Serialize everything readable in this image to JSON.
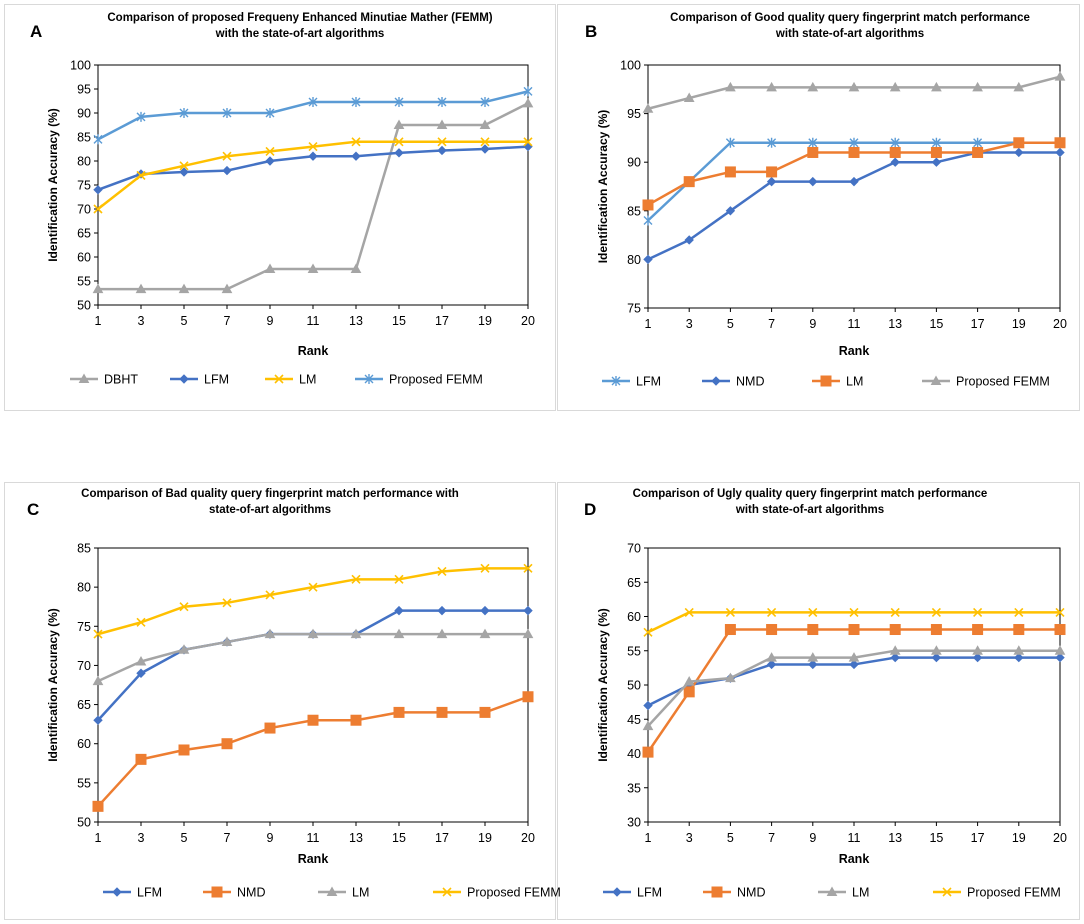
{
  "chart_data": [
    {
      "type": "line",
      "letter": "A",
      "title": [
        "Comparison of proposed Frequeny Enhanced Minutiae Mather (FEMM)",
        "with the state-of-art algorithms"
      ],
      "xlabel": "Rank",
      "ylabel": "Identification Accuracy (%)",
      "ylim": [
        50,
        100
      ],
      "yticks": [
        50,
        55,
        60,
        65,
        70,
        75,
        80,
        85,
        90,
        95,
        100
      ],
      "categories": [
        "1",
        "3",
        "5",
        "7",
        "9",
        "11",
        "13",
        "15",
        "17",
        "19",
        "20"
      ],
      "grid": false,
      "legend": "bottom",
      "series": [
        {
          "name": "DBHT",
          "color": "#A5A5A5",
          "marker": "triangle",
          "values": [
            53.3,
            53.3,
            53.3,
            53.3,
            57.5,
            57.5,
            57.5,
            87.5,
            87.5,
            87.5,
            92
          ]
        },
        {
          "name": "LFM",
          "color": "#4472C4",
          "marker": "diamond",
          "values": [
            74,
            77.3,
            77.7,
            78,
            80,
            81,
            81,
            81.7,
            82.2,
            82.5,
            83
          ]
        },
        {
          "name": "LM",
          "color": "#FFC000",
          "marker": "x",
          "values": [
            70,
            77,
            79,
            81,
            82,
            83,
            84,
            84,
            84,
            84,
            84
          ]
        },
        {
          "name": "Proposed FEMM",
          "color": "#5B9BD5",
          "marker": "star",
          "values": [
            84.5,
            89.2,
            90,
            90,
            90,
            92.3,
            92.3,
            92.3,
            92.3,
            92.3,
            94.5
          ]
        }
      ]
    },
    {
      "type": "line",
      "letter": "B",
      "title": [
        "Comparison of  Good quality query fingerprint match performance",
        "with state-of-art algorithms"
      ],
      "xlabel": "Rank",
      "ylabel": "Identification Accuracy (%)",
      "ylim": [
        75,
        100
      ],
      "yticks": [
        75,
        80,
        85,
        90,
        95,
        100
      ],
      "categories": [
        "1",
        "3",
        "5",
        "7",
        "9",
        "11",
        "13",
        "15",
        "17",
        "19",
        "20"
      ],
      "grid": false,
      "legend": "bottom",
      "series": [
        {
          "name": "LFM",
          "color": "#5B9BD5",
          "marker": "star",
          "values": [
            84,
            88,
            92,
            92,
            92,
            92,
            92,
            92,
            92,
            92,
            92
          ]
        },
        {
          "name": "NMD",
          "color": "#4472C4",
          "marker": "diamond",
          "values": [
            80,
            82,
            85,
            88,
            88,
            88,
            90,
            90,
            91,
            91,
            91
          ]
        },
        {
          "name": "LM",
          "color": "#ED7D31",
          "marker": "square",
          "values": [
            85.6,
            88,
            89,
            89,
            91,
            91,
            91,
            91,
            91,
            92,
            92
          ]
        },
        {
          "name": "Proposed FEMM",
          "color": "#A5A5A5",
          "marker": "triangle",
          "values": [
            95.5,
            96.6,
            97.7,
            97.7,
            97.7,
            97.7,
            97.7,
            97.7,
            97.7,
            97.7,
            98.8
          ]
        }
      ]
    },
    {
      "type": "line",
      "letter": "C",
      "title": [
        "Comparison of  Bad quality query fingerprint match performance with",
        "state-of-art algorithms"
      ],
      "xlabel": "Rank",
      "ylabel": "Identification Accuracy (%)",
      "ylim": [
        50,
        85
      ],
      "yticks": [
        50,
        55,
        60,
        65,
        70,
        75,
        80,
        85
      ],
      "categories": [
        "1",
        "3",
        "5",
        "7",
        "9",
        "11",
        "13",
        "15",
        "17",
        "19",
        "20"
      ],
      "grid": false,
      "legend": "bottom",
      "series": [
        {
          "name": "LFM",
          "color": "#4472C4",
          "marker": "diamond",
          "values": [
            63,
            69,
            72,
            73,
            74,
            74,
            74,
            77,
            77,
            77,
            77
          ]
        },
        {
          "name": "NMD",
          "color": "#ED7D31",
          "marker": "square",
          "values": [
            52,
            58,
            59.2,
            60,
            62,
            63,
            63,
            64,
            64,
            64,
            66
          ]
        },
        {
          "name": "LM",
          "color": "#A5A5A5",
          "marker": "triangle",
          "values": [
            68,
            70.5,
            72,
            73,
            74,
            74,
            74,
            74,
            74,
            74,
            74
          ]
        },
        {
          "name": "Proposed FEMM",
          "color": "#FFC000",
          "marker": "x",
          "values": [
            74,
            75.5,
            77.5,
            78,
            79,
            80,
            81,
            81,
            82,
            82.4,
            82.4
          ]
        }
      ]
    },
    {
      "type": "line",
      "letter": "D",
      "title": [
        "Comparison of Ugly quality query fingerprint match performance",
        "with state-of-art algorithms"
      ],
      "xlabel": "Rank",
      "ylabel": "Identification Accuracy (%)",
      "ylim": [
        30,
        70
      ],
      "yticks": [
        30,
        35,
        40,
        45,
        50,
        55,
        60,
        65,
        70
      ],
      "categories": [
        "1",
        "3",
        "5",
        "7",
        "9",
        "11",
        "13",
        "15",
        "17",
        "19",
        "20"
      ],
      "grid": false,
      "legend": "bottom",
      "series": [
        {
          "name": "LFM",
          "color": "#4472C4",
          "marker": "diamond",
          "values": [
            47,
            50,
            51,
            53,
            53,
            53,
            54,
            54,
            54,
            54,
            54
          ]
        },
        {
          "name": "NMD",
          "color": "#ED7D31",
          "marker": "square",
          "values": [
            40.2,
            49,
            58.1,
            58.1,
            58.1,
            58.1,
            58.1,
            58.1,
            58.1,
            58.1,
            58.1
          ]
        },
        {
          "name": "LM",
          "color": "#A5A5A5",
          "marker": "triangle",
          "values": [
            44,
            50.5,
            51,
            54,
            54,
            54,
            55,
            55,
            55,
            55,
            55
          ]
        },
        {
          "name": "Proposed FEMM",
          "color": "#FFC000",
          "marker": "x",
          "values": [
            57.7,
            60.6,
            60.6,
            60.6,
            60.6,
            60.6,
            60.6,
            60.6,
            60.6,
            60.6,
            60.6
          ]
        }
      ]
    }
  ]
}
